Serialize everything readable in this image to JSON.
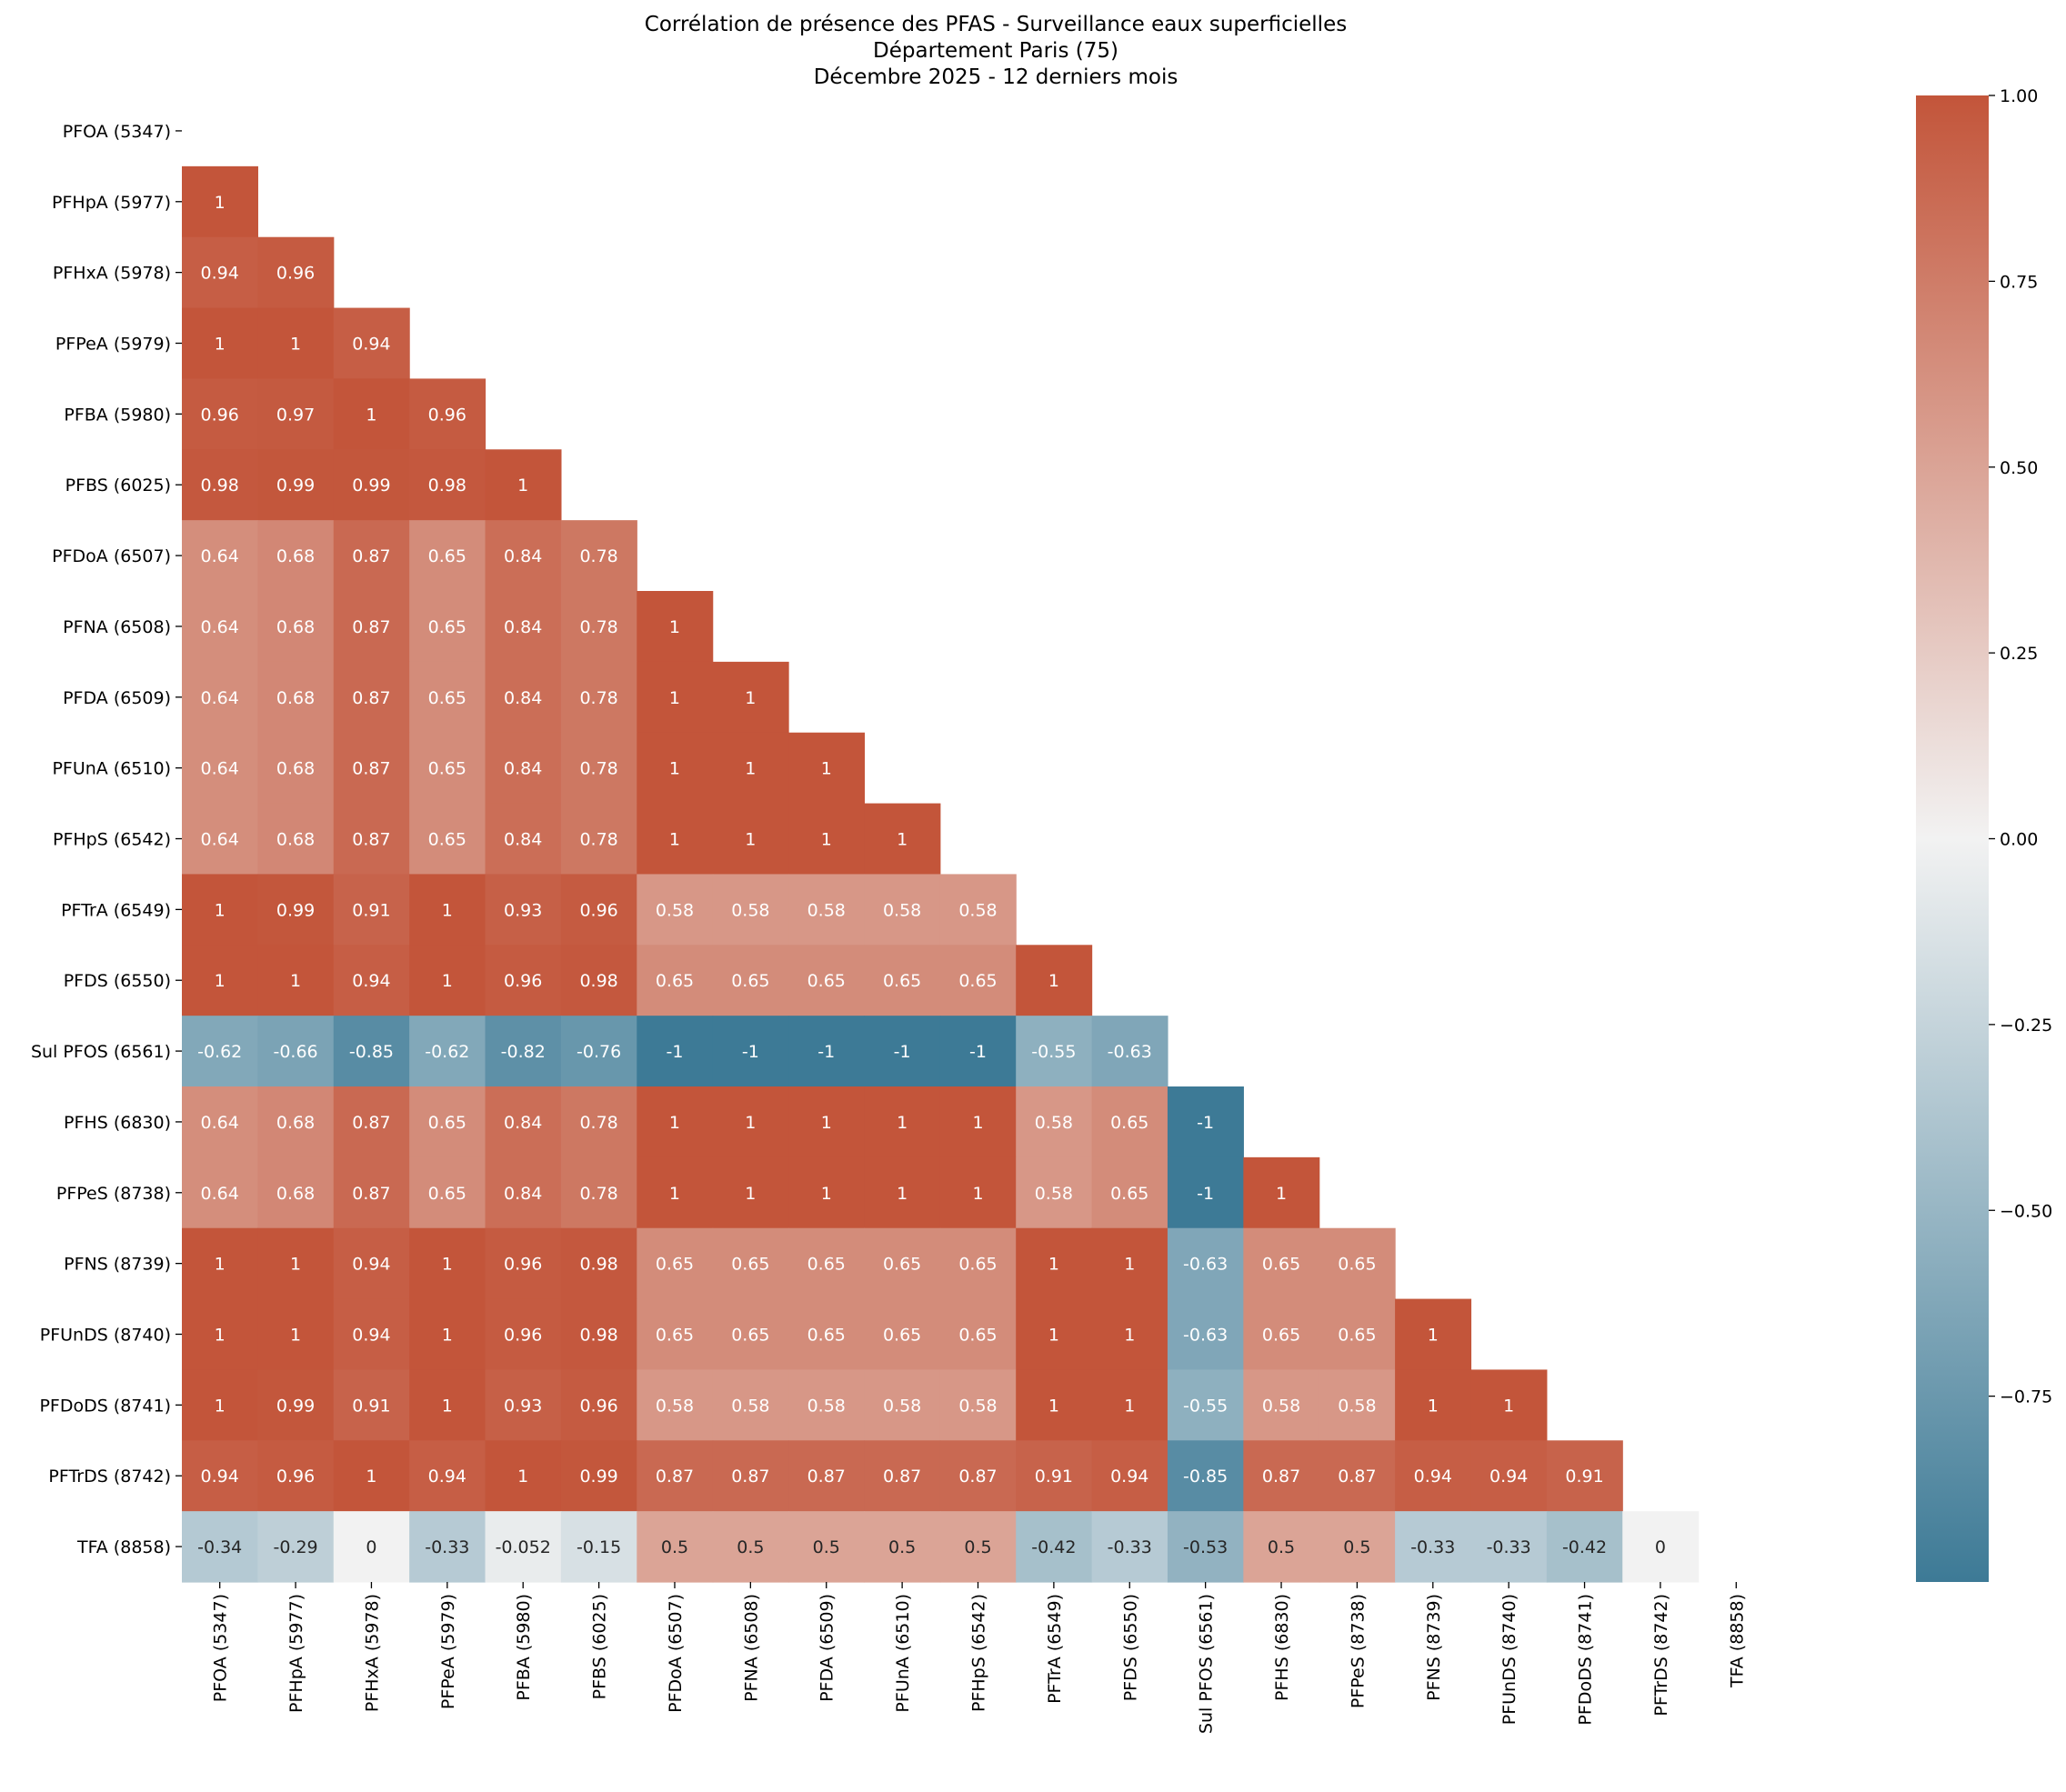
{
  "chart_data": {
    "type": "heatmap",
    "title": [
      "Corrélation de présence des PFAS - Surveillance eaux superficielles",
      "Département Paris (75)",
      "Décembre 2025 - 12 derniers mois"
    ],
    "labels": [
      "PFOA (5347)",
      "PFHpA (5977)",
      "PFHxA (5978)",
      "PFPeA (5979)",
      "PFBA (5980)",
      "PFBS (6025)",
      "PFDoA (6507)",
      "PFNA (6508)",
      "PFDA (6509)",
      "PFUnA (6510)",
      "PFHpS (6542)",
      "PFTrA (6549)",
      "PFDS (6550)",
      "Sul PFOS (6561)",
      "PFHS (6830)",
      "PFPeS (8738)",
      "PFNS (8739)",
      "PFUnDS (8740)",
      "PFDoDS (8741)",
      "PFTrDS (8742)",
      "TFA (8858)"
    ],
    "mask": "upper-triangle-and-diagonal",
    "lower_triangle": [
      [],
      [
        1
      ],
      [
        0.94,
        0.96
      ],
      [
        1,
        1,
        0.94
      ],
      [
        0.96,
        0.97,
        1,
        0.96
      ],
      [
        0.98,
        0.99,
        0.99,
        0.98,
        1
      ],
      [
        0.64,
        0.68,
        0.87,
        0.65,
        0.84,
        0.78
      ],
      [
        0.64,
        0.68,
        0.87,
        0.65,
        0.84,
        0.78,
        1
      ],
      [
        0.64,
        0.68,
        0.87,
        0.65,
        0.84,
        0.78,
        1,
        1
      ],
      [
        0.64,
        0.68,
        0.87,
        0.65,
        0.84,
        0.78,
        1,
        1,
        1
      ],
      [
        0.64,
        0.68,
        0.87,
        0.65,
        0.84,
        0.78,
        1,
        1,
        1,
        1
      ],
      [
        1,
        0.99,
        0.91,
        1,
        0.93,
        0.96,
        0.58,
        0.58,
        0.58,
        0.58,
        0.58
      ],
      [
        1,
        1,
        0.94,
        1,
        0.96,
        0.98,
        0.65,
        0.65,
        0.65,
        0.65,
        0.65,
        1
      ],
      [
        -0.62,
        -0.66,
        -0.85,
        -0.62,
        -0.82,
        -0.76,
        -1,
        -1,
        -1,
        -1,
        -1,
        -0.55,
        -0.63
      ],
      [
        0.64,
        0.68,
        0.87,
        0.65,
        0.84,
        0.78,
        1,
        1,
        1,
        1,
        1,
        0.58,
        0.65,
        -1
      ],
      [
        0.64,
        0.68,
        0.87,
        0.65,
        0.84,
        0.78,
        1,
        1,
        1,
        1,
        1,
        0.58,
        0.65,
        -1,
        1
      ],
      [
        1,
        1,
        0.94,
        1,
        0.96,
        0.98,
        0.65,
        0.65,
        0.65,
        0.65,
        0.65,
        1,
        1,
        -0.63,
        0.65,
        0.65
      ],
      [
        1,
        1,
        0.94,
        1,
        0.96,
        0.98,
        0.65,
        0.65,
        0.65,
        0.65,
        0.65,
        1,
        1,
        -0.63,
        0.65,
        0.65,
        1
      ],
      [
        1,
        0.99,
        0.91,
        1,
        0.93,
        0.96,
        0.58,
        0.58,
        0.58,
        0.58,
        0.58,
        1,
        1,
        -0.55,
        0.58,
        0.58,
        1,
        1
      ],
      [
        0.94,
        0.96,
        1,
        0.94,
        1,
        0.99,
        0.87,
        0.87,
        0.87,
        0.87,
        0.87,
        0.91,
        0.94,
        -0.85,
        0.87,
        0.87,
        0.94,
        0.94,
        0.91
      ],
      [
        -0.34,
        -0.29,
        0,
        -0.33,
        -0.052,
        -0.15,
        0.5,
        0.5,
        0.5,
        0.5,
        0.5,
        -0.42,
        -0.33,
        -0.53,
        0.5,
        0.5,
        -0.33,
        -0.33,
        -0.42,
        0
      ]
    ],
    "colorbar": {
      "range": [
        -1,
        1
      ],
      "ticks": [
        1.0,
        0.75,
        0.5,
        0.25,
        0.0,
        -0.25,
        -0.5,
        -0.75
      ],
      "tick_labels": [
        "1.00",
        "0.75",
        "0.50",
        "0.25",
        "0.00",
        "−0.25",
        "−0.50",
        "−0.75"
      ]
    },
    "colors": {
      "negative": "#3d7a96",
      "center": "#f2f2f2",
      "positive": "#c3553a"
    },
    "annotations": true,
    "grid": false
  }
}
